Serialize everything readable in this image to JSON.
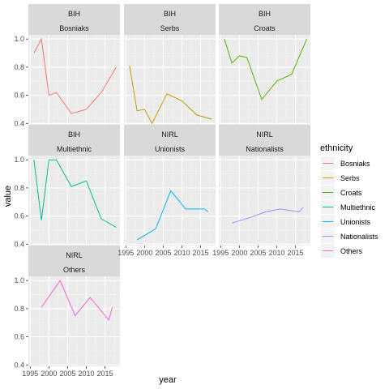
{
  "chart_data": {
    "type": "line",
    "xlabel": "year",
    "ylabel": "value",
    "xlim": [
      1994.5,
      2019
    ],
    "ylim": [
      0.39,
      1.03
    ],
    "x_ticks": [
      1995,
      2000,
      2005,
      2010,
      2015
    ],
    "y_ticks": [
      0.4,
      0.6,
      0.8,
      1.0
    ],
    "x_tick_labels": [
      "1995",
      "2000",
      "2005",
      "2010",
      "2015"
    ],
    "y_tick_labels": [
      "0.4",
      "0.6",
      "0.8",
      "1.0"
    ],
    "grid": true,
    "legend": {
      "title": "ethnicity",
      "position": "right",
      "entries": [
        {
          "name": "Bosniaks",
          "color": "#F8766D"
        },
        {
          "name": "Serbs",
          "color": "#C49A00"
        },
        {
          "name": "Croats",
          "color": "#53B400"
        },
        {
          "name": "Multiethnic",
          "color": "#00C094"
        },
        {
          "name": "Unionists",
          "color": "#00B6EB"
        },
        {
          "name": "Nationalists",
          "color": "#A58AFF"
        },
        {
          "name": "Others",
          "color": "#FB61D7"
        }
      ]
    },
    "facets": [
      {
        "country": "BIH",
        "ethnicity": "Bosniaks",
        "color": "#F8766D",
        "x": [
          1996,
          1998,
          2000,
          2002,
          2006,
          2010,
          2014,
          2018
        ],
        "y": [
          0.9,
          1.0,
          0.6,
          0.62,
          0.47,
          0.5,
          0.62,
          0.8
        ]
      },
      {
        "country": "BIH",
        "ethnicity": "Serbs",
        "color": "#C49A00",
        "x": [
          1996,
          1998,
          2000,
          2002,
          2006,
          2010,
          2014,
          2018
        ],
        "y": [
          0.81,
          0.49,
          0.5,
          0.4,
          0.61,
          0.56,
          0.46,
          0.43
        ]
      },
      {
        "country": "BIH",
        "ethnicity": "Croats",
        "color": "#53B400",
        "x": [
          1996,
          1998,
          2000,
          2002,
          2006,
          2010,
          2014,
          2018
        ],
        "y": [
          1.0,
          0.83,
          0.88,
          0.87,
          0.57,
          0.7,
          0.75,
          1.0
        ]
      },
      {
        "country": "BIH",
        "ethnicity": "Multiethnic",
        "color": "#00C094",
        "x": [
          1996,
          1998,
          2000,
          2002,
          2006,
          2010,
          2014,
          2018
        ],
        "y": [
          1.0,
          0.57,
          1.0,
          1.0,
          0.81,
          0.85,
          0.58,
          0.52
        ]
      },
      {
        "country": "NIRL",
        "ethnicity": "Unionists",
        "color": "#00B6EB",
        "x": [
          1998,
          2003,
          2007,
          2011,
          2016,
          2017
        ],
        "y": [
          0.43,
          0.51,
          0.78,
          0.65,
          0.65,
          0.63
        ]
      },
      {
        "country": "NIRL",
        "ethnicity": "Nationalists",
        "color": "#A58AFF",
        "x": [
          1998,
          2003,
          2007,
          2011,
          2016,
          2017
        ],
        "y": [
          0.55,
          0.59,
          0.63,
          0.65,
          0.63,
          0.66
        ]
      },
      {
        "country": "NIRL",
        "ethnicity": "Others",
        "color": "#FB61D7",
        "x": [
          1998,
          2003,
          2007,
          2011,
          2016,
          2017
        ],
        "y": [
          0.81,
          1.0,
          0.75,
          0.88,
          0.72,
          0.81
        ]
      }
    ]
  }
}
